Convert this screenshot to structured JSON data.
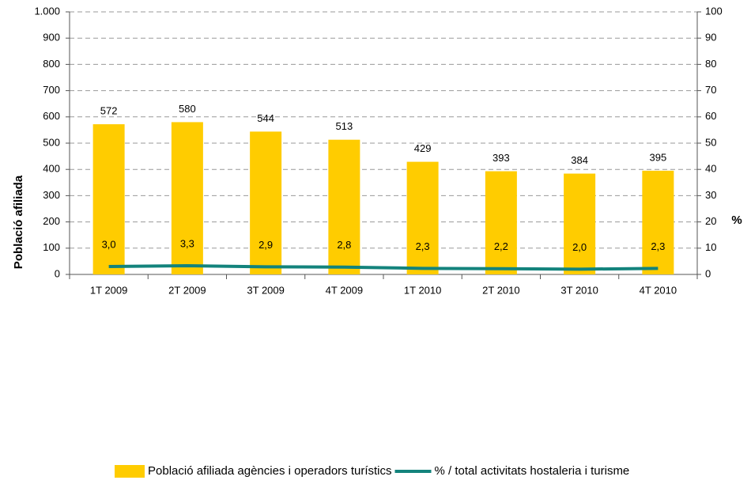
{
  "chart_data": {
    "type": "bar",
    "categories": [
      "1T 2009",
      "2T 2009",
      "3T 2009",
      "4T 2009",
      "1T 2010",
      "2T 2010",
      "3T 2010",
      "4T 2010"
    ],
    "series": [
      {
        "name": "Població afiliada agències i operadors turístics",
        "type": "bar",
        "color": "#ffcc00",
        "values": [
          572,
          580,
          544,
          513,
          429,
          393,
          384,
          395
        ]
      },
      {
        "name": "% / total activitats hostaleria i turisme",
        "type": "line",
        "axis": "y2",
        "color": "#13837c",
        "values": [
          3.0,
          3.3,
          2.9,
          2.8,
          2.3,
          2.2,
          2.0,
          2.3
        ],
        "value_labels": [
          "3,0",
          "3,3",
          "2,9",
          "2,8",
          "2,3",
          "2,2",
          "2,0",
          "2,3"
        ]
      }
    ],
    "ylabel": "Població afiliada",
    "y2label": "%",
    "ylim": [
      0,
      1000
    ],
    "yticks": [
      0,
      100,
      200,
      300,
      400,
      500,
      600,
      700,
      800,
      900,
      {
        "value": 1000,
        "label": "1.000"
      }
    ],
    "y2lim": [
      0,
      100
    ],
    "y2ticks": [
      0,
      10,
      20,
      30,
      40,
      50,
      60,
      70,
      80,
      90,
      100
    ],
    "grid": true
  }
}
